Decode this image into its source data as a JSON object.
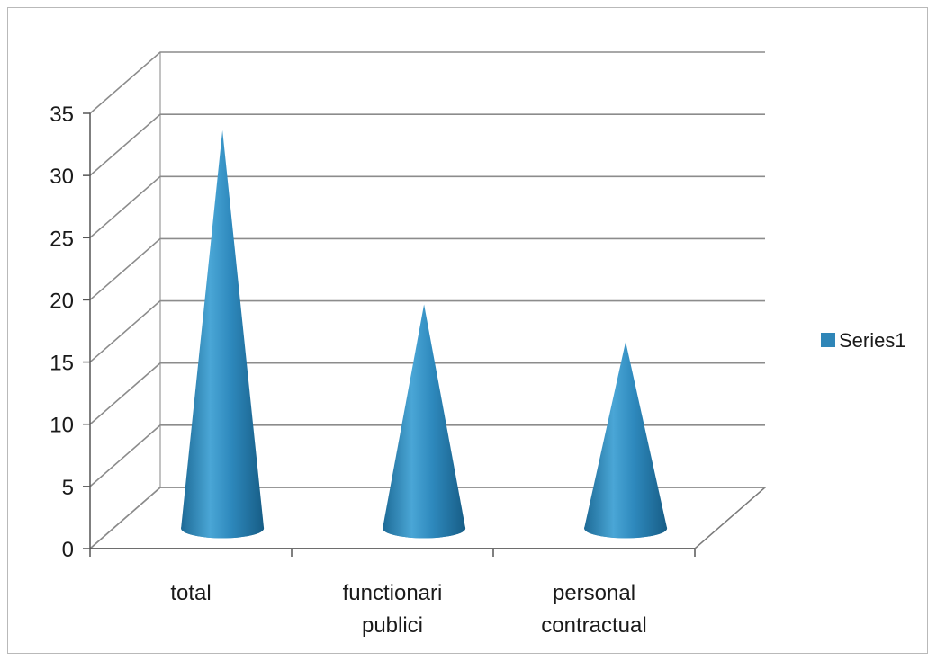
{
  "chart_data": {
    "type": "bar",
    "shape": "cone",
    "three_d": true,
    "categories": [
      [
        "total"
      ],
      [
        "functionari",
        "publici"
      ],
      [
        "personal",
        "contractual"
      ]
    ],
    "series": [
      {
        "name": "Series1",
        "values": [
          32,
          18,
          15
        ],
        "color": "#2f86b8"
      }
    ],
    "ylim": [
      0,
      35
    ],
    "yticks": [
      "0",
      "5",
      "10",
      "15",
      "20",
      "25",
      "30",
      "35"
    ],
    "grid": true,
    "legend_position": "right"
  }
}
